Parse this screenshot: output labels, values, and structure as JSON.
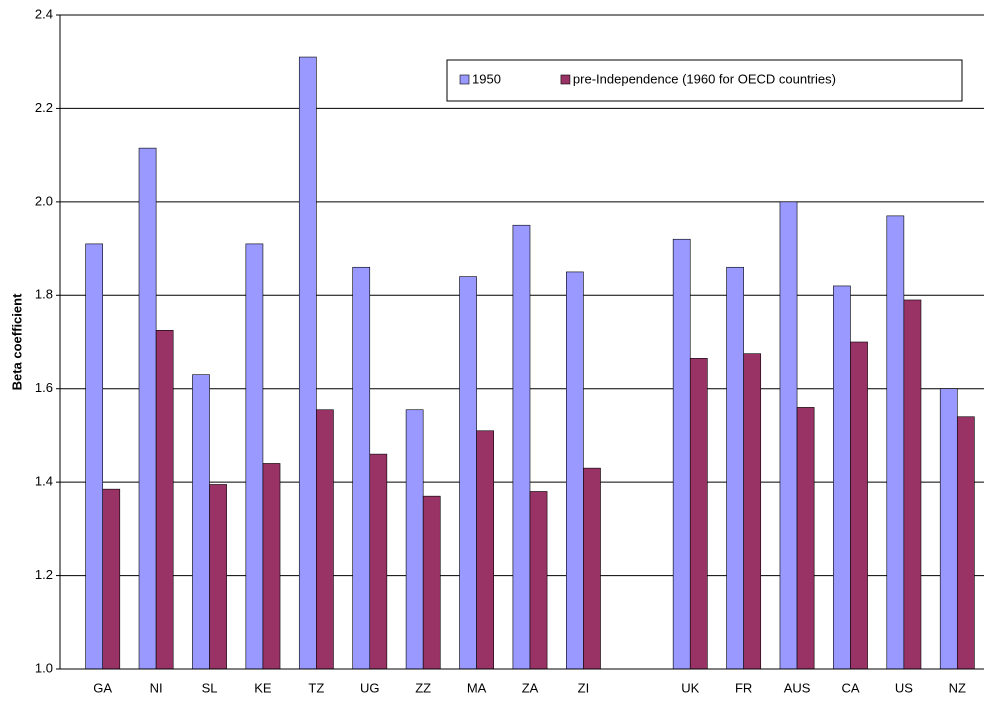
{
  "chart_data": {
    "type": "bar",
    "y_label": "Beta coefficient",
    "categories": [
      "GA",
      "NI",
      "SL",
      "KE",
      "TZ",
      "UG",
      "ZZ",
      "MA",
      "ZA",
      "ZI",
      null,
      "UK",
      "FR",
      "AUS",
      "CA",
      "US",
      "NZ"
    ],
    "series": [
      {
        "name": "1950",
        "color": "#9999ff",
        "values": [
          1.91,
          2.115,
          1.63,
          1.91,
          2.31,
          1.86,
          1.555,
          1.84,
          1.95,
          1.85,
          null,
          1.92,
          1.86,
          2.0,
          1.82,
          1.97,
          1.6
        ]
      },
      {
        "name": "pre-Independence (1960 for OECD countries)",
        "color": "#993366",
        "values": [
          1.385,
          1.725,
          1.395,
          1.44,
          1.555,
          1.46,
          1.37,
          1.51,
          1.38,
          1.43,
          null,
          1.665,
          1.675,
          1.56,
          1.7,
          1.79,
          1.54
        ]
      }
    ],
    "ylim": [
      1,
      2.4
    ],
    "yticks": [
      {
        "value": 1,
        "label": "1.0"
      },
      1.2,
      1.4,
      1.6,
      1.8,
      {
        "value": 2,
        "label": "2.0"
      },
      2.2,
      2.4
    ],
    "grid": true
  }
}
